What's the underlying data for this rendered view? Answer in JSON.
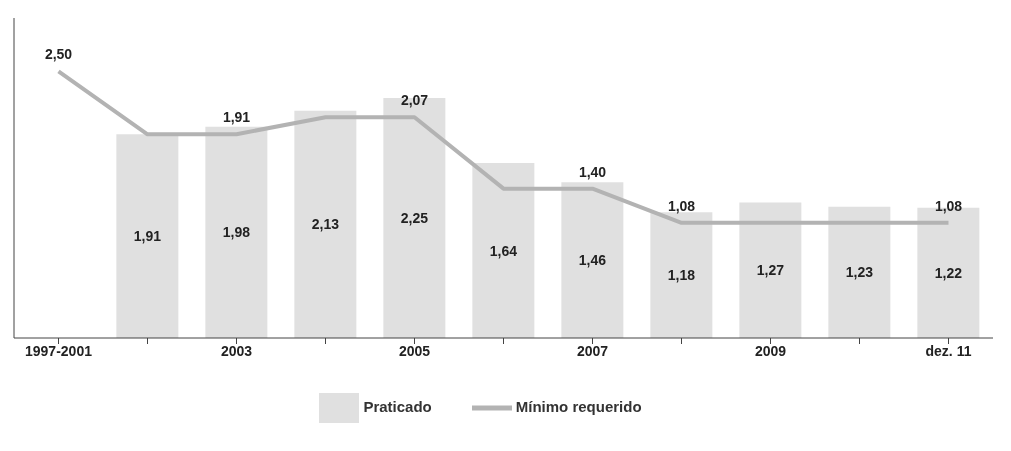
{
  "chart_data": {
    "type": "bar",
    "categories": [
      "1997-2001",
      null,
      "2003",
      null,
      "2005",
      null,
      "2007",
      null,
      "2009",
      null,
      "dez. 11"
    ],
    "series": [
      {
        "name": "Praticado",
        "color": "#e0e0e0",
        "values": [
          null,
          1.91,
          1.98,
          2.13,
          2.25,
          1.64,
          1.46,
          1.18,
          1.27,
          1.23,
          1.22
        ],
        "value_labels": [
          null,
          "1,91",
          "1,98",
          "2,13",
          "2,25",
          "1,64",
          "1,46",
          "1,18",
          "1,27",
          "1,23",
          "1,22"
        ]
      },
      {
        "name": "Mínimo requerido",
        "type": "line",
        "color": "#b3b3b3",
        "values": [
          2.5,
          1.91,
          1.91,
          2.07,
          2.07,
          1.4,
          1.4,
          1.08,
          1.08,
          1.08,
          1.08
        ],
        "value_labels": [
          "2,50",
          null,
          "1,91",
          null,
          "2,07",
          null,
          "1,40",
          "1,08",
          null,
          null,
          "1,08"
        ]
      }
    ],
    "ylim": [
      0,
      3
    ],
    "tick_labels": "x",
    "legend": "bottom",
    "grid": false,
    "marker": "none",
    "line_style": "solid"
  }
}
